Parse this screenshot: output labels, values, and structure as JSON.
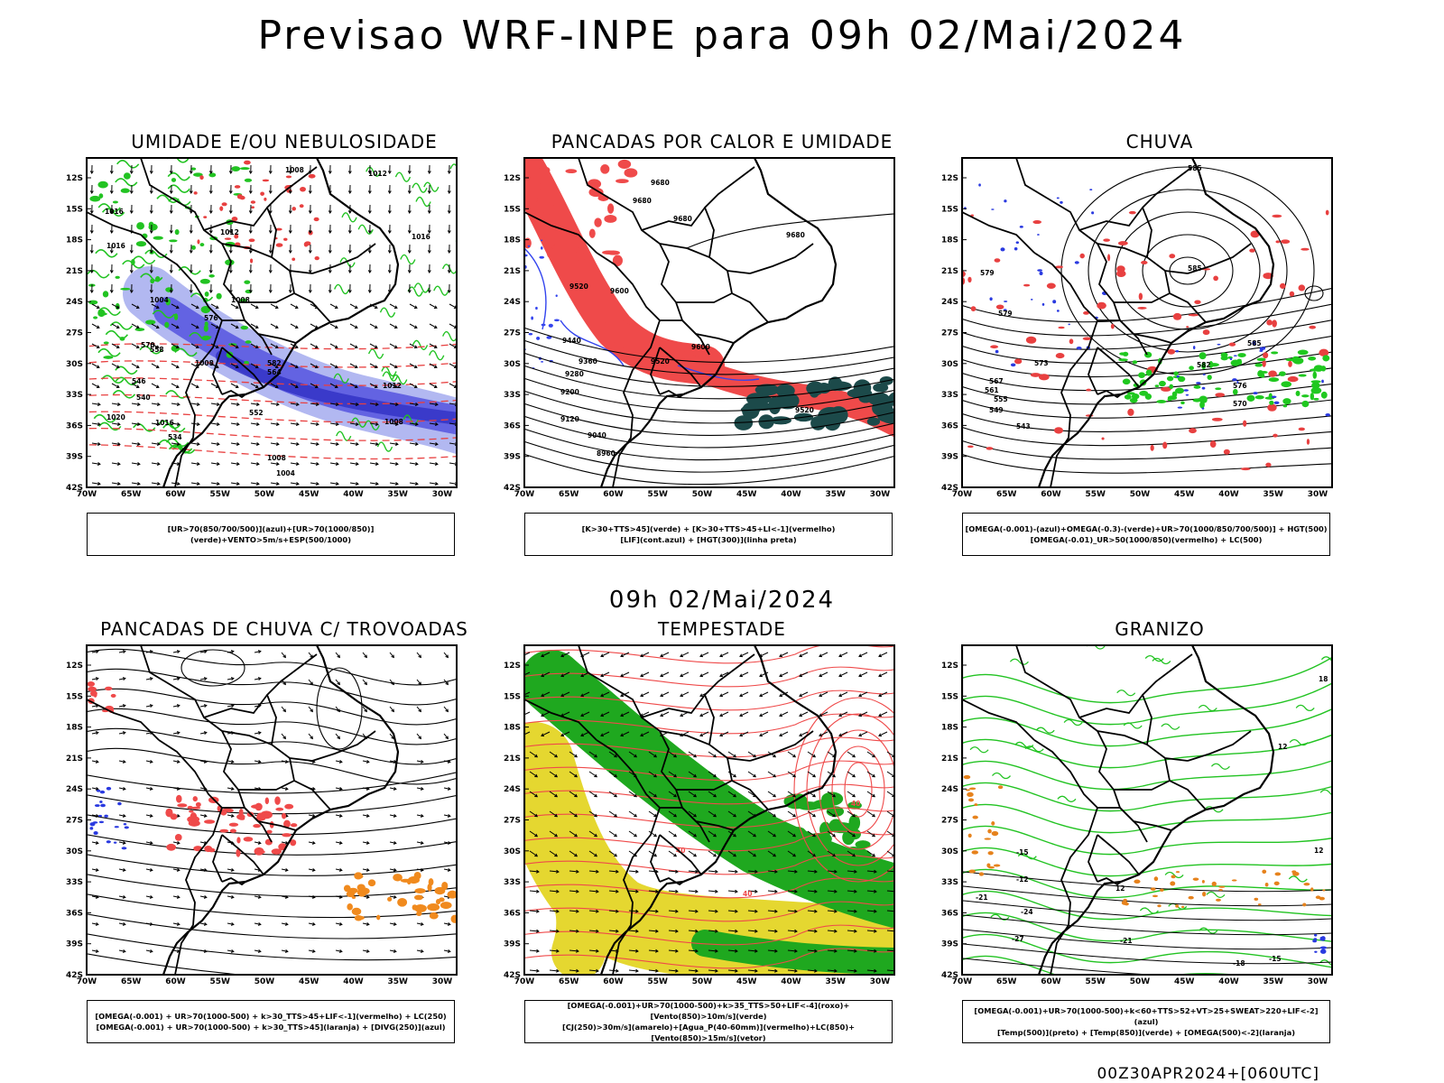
{
  "header": {
    "title": "Previsao WRF-INPE  para 09h 02/Mai/2024"
  },
  "middle_title": "09h 02/Mai/2024",
  "footer": "00Z30APR2024+[060UTC]",
  "axes": {
    "lat_ticks": [
      "12S",
      "15S",
      "18S",
      "21S",
      "24S",
      "27S",
      "30S",
      "33S",
      "36S",
      "39S",
      "42S"
    ],
    "lon_ticks": [
      "70W",
      "65W",
      "60W",
      "55W",
      "50W",
      "45W",
      "40W",
      "35W",
      "30W"
    ]
  },
  "panels": [
    {
      "title": "UMIDADE E/OU NEBULOSIDADE",
      "legend": [
        "[UR>70(850/700/500)](azul)+[UR>70(1000/850)](verde)+VENTO>5m/s+ESP(500/1000)"
      ],
      "contour_labels": [
        "1012",
        "1008",
        "1016",
        "1012",
        "1004",
        "1008",
        "1016",
        "1016",
        "1008",
        "1012",
        "1008",
        "1020",
        "1016",
        "1008",
        "1004",
        "570",
        "576",
        "564",
        "558",
        "546",
        "540",
        "534",
        "582",
        "552"
      ]
    },
    {
      "title": "PANCADAS POR CALOR E UMIDADE",
      "legend": [
        "[K>30+TTS>45](verde) + [K>30+TTS>45+LI<-1](vermelho)",
        "[LIF](cont.azul) + [HGT(300)](linha preta)"
      ],
      "contour_labels": [
        "9680",
        "9680",
        "9680",
        "9680",
        "9520",
        "9600",
        "9440",
        "9360",
        "9280",
        "9200",
        "9120",
        "9040",
        "8960",
        "9600",
        "9520",
        "9520"
      ]
    },
    {
      "title": "CHUVA",
      "legend": [
        "[OMEGA(-0.001)-(azul)+OMEGA(-0.3)-(verde)+UR>70(1000/850/700/500)] + HGT(500)",
        "[OMEGA(-0.01)_UR>50(1000/850)(vermelho) + LC(500)"
      ],
      "contour_labels": [
        "585",
        "585",
        "585",
        "579",
        "579",
        "573",
        "567",
        "561",
        "555",
        "549",
        "543",
        "582",
        "576",
        "570"
      ]
    },
    {
      "title": "PANCADAS DE CHUVA C/ TROVOADAS",
      "legend": [
        "[OMEGA(-0.001) + UR>70(1000-500) + k>30_TTS>45+LIF<-1](vermelho) + LC(250)",
        "[OMEGA(-0.001) + UR>70(1000-500) + k>30_TTS>45](laranja) + [DIVG(250)](azul)"
      ],
      "contour_labels": []
    },
    {
      "title": "TEMPESTADE",
      "legend": [
        "[OMEGA(-0.001)+UR>70(1000-500)+k>35_TTS>50+LIF<-4](roxo)+[Vento(850)>10m/s](verde)",
        "[CJ(250)>30m/s](amarelo)+[Agua_P(40-60mm)](vermelho)+LC(850)+[Vento(850)>15m/s](vetor)"
      ],
      "contour_labels": [
        "40",
        "40",
        "40"
      ]
    },
    {
      "title": "GRANIZO",
      "legend": [
        "[OMEGA(-0.001)+UR>70(1000-500)+k<60+TTS>52+VT>25+SWEAT>220+LIF<-2](azul)",
        "[Temp(500)](preto) + [Temp(850)](verde) + [OMEGA(500)<-2](laranja)"
      ],
      "contour_labels": [
        "18",
        "12",
        "12",
        "-15",
        "-12",
        "-21",
        "-24",
        "-27",
        "-21",
        "-18",
        "-15",
        "12"
      ]
    }
  ]
}
